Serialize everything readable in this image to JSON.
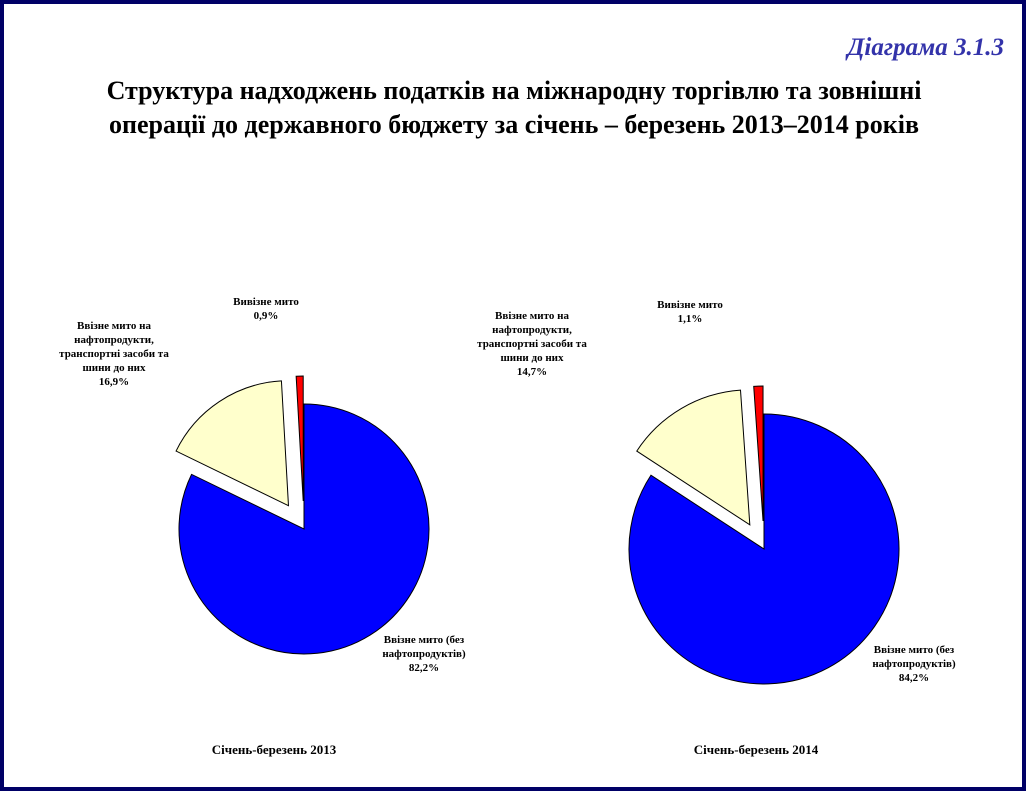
{
  "label": "Діаграма 3.1.3",
  "title": "Структура надходжень податків на міжнародну торгівлю та зовнішні операції до державного бюджету за січень – березень 2013–2014 років",
  "chart_data": [
    {
      "type": "pie",
      "title": "Січень-березень 2013",
      "categories": [
        "Ввізне мито (без нафтопродуктів)",
        "Ввізне мито на нафтопродукти, транспортні засоби та шини до них",
        "Вивізне мито"
      ],
      "values": [
        82.2,
        16.9,
        0.9
      ],
      "value_labels": [
        "82,2%",
        "16,9%",
        "0,9%"
      ],
      "colors": [
        "#0000ff",
        "#ffffcc",
        "#ff0000"
      ]
    },
    {
      "type": "pie",
      "title": "Січень-березень 2014",
      "categories": [
        "Ввізне мито (без нафтопродуктів)",
        "Ввізне мито на нафтопродукти, транспортні засоби та шини до них",
        "Вивізне мито"
      ],
      "values": [
        84.2,
        14.7,
        1.1
      ],
      "value_labels": [
        "84,2%",
        "14,7%",
        "1,1%"
      ],
      "colors": [
        "#0000ff",
        "#ffffcc",
        "#ff0000"
      ]
    }
  ]
}
